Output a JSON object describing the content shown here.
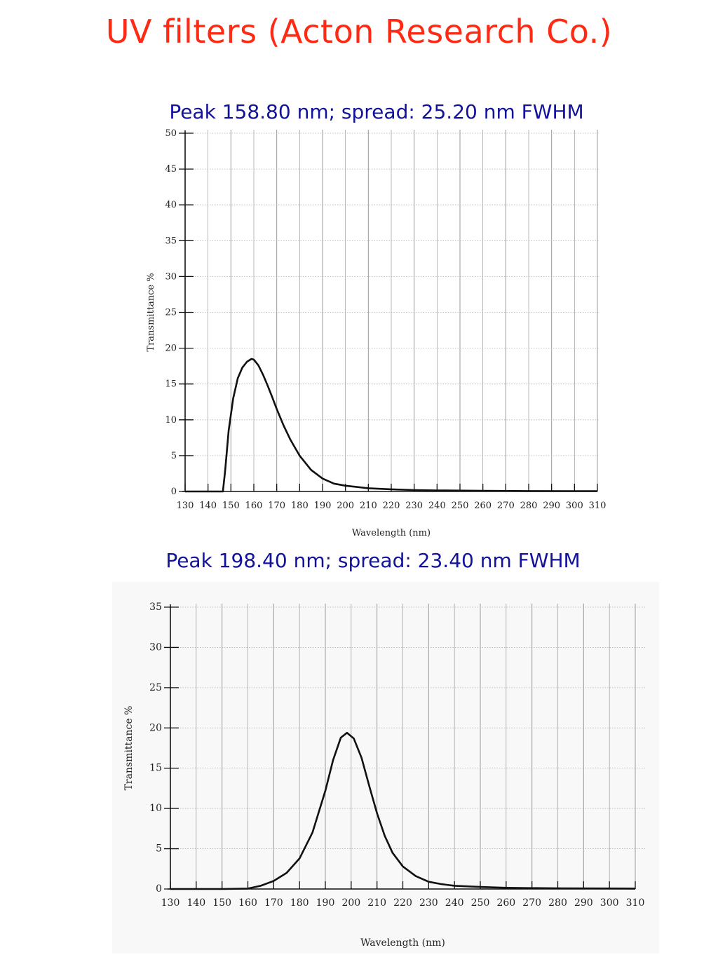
{
  "title": "UV filters (Acton Research Co.)",
  "chart_data": [
    {
      "type": "line",
      "caption": "Peak 158.80 nm; spread: 25.20 nm  FWHM",
      "xlabel": "Wavelength (nm)",
      "ylabel": "Transmittance %",
      "xlim": [
        130,
        310
      ],
      "ylim": [
        0,
        50
      ],
      "x_ticks": [
        130,
        140,
        150,
        160,
        170,
        180,
        190,
        200,
        210,
        220,
        230,
        240,
        250,
        260,
        270,
        280,
        290,
        300,
        310
      ],
      "y_ticks": [
        0,
        5,
        10,
        15,
        20,
        25,
        30,
        35,
        40,
        45,
        50
      ],
      "grid": true,
      "series": [
        {
          "x": [
            130,
            140,
            146.5,
            147.5,
            149,
            151,
            153,
            155,
            157,
            159,
            160,
            162,
            164,
            166,
            168,
            170,
            173,
            176,
            180,
            185,
            190,
            195,
            200,
            210,
            220,
            230,
            240,
            260,
            280,
            300,
            310
          ],
          "y": [
            0,
            0,
            0,
            3,
            8.5,
            13,
            15.8,
            17.3,
            18.1,
            18.5,
            18.4,
            17.6,
            16.3,
            14.8,
            13.2,
            11.5,
            9.2,
            7.2,
            5.0,
            3.0,
            1.8,
            1.1,
            0.8,
            0.45,
            0.3,
            0.2,
            0.15,
            0.1,
            0.06,
            0.05,
            0.05
          ]
        }
      ]
    },
    {
      "type": "line",
      "caption": "Peak 198.40 nm; spread: 23.40 nm  FWHM",
      "xlabel": "Wavelength (nm)",
      "ylabel": "Transmittance %",
      "xlim": [
        130,
        310
      ],
      "ylim": [
        0,
        35
      ],
      "x_ticks": [
        130,
        140,
        150,
        160,
        170,
        180,
        190,
        200,
        210,
        220,
        230,
        240,
        250,
        260,
        270,
        280,
        290,
        300,
        310
      ],
      "y_ticks": [
        0,
        5,
        10,
        15,
        20,
        25,
        30,
        35
      ],
      "grid": true,
      "series": [
        {
          "x": [
            130,
            150,
            160,
            165,
            170,
            175,
            180,
            185,
            190,
            193,
            196,
            198.4,
            201,
            204,
            207,
            210,
            213,
            216,
            220,
            225,
            230,
            235,
            240,
            250,
            260,
            280,
            310
          ],
          "y": [
            0,
            0,
            0.05,
            0.4,
            1.0,
            2.0,
            3.8,
            7.0,
            12.2,
            16.0,
            18.8,
            19.4,
            18.7,
            16.3,
            12.8,
            9.4,
            6.6,
            4.5,
            2.8,
            1.6,
            0.9,
            0.6,
            0.4,
            0.25,
            0.15,
            0.08,
            0.05
          ]
        }
      ]
    }
  ]
}
